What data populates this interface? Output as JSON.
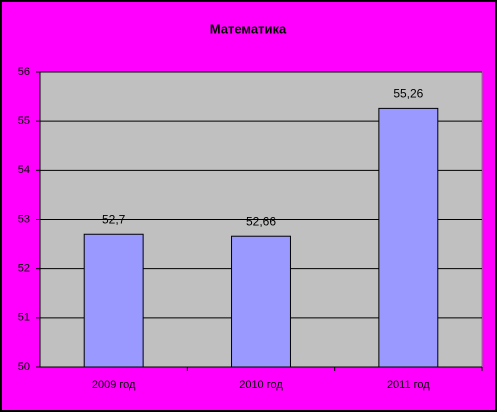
{
  "chart_data": {
    "type": "bar",
    "title": "Математика",
    "categories": [
      "2009 год",
      "2010 год",
      "2011 год"
    ],
    "values": [
      52.7,
      52.66,
      55.26
    ],
    "value_labels": [
      "52,7",
      "52,66",
      "55,26"
    ],
    "color": "#9999ff",
    "ylim": [
      50,
      56
    ],
    "yticks": [
      50,
      51,
      52,
      53,
      54,
      55,
      56
    ],
    "grid": true
  }
}
